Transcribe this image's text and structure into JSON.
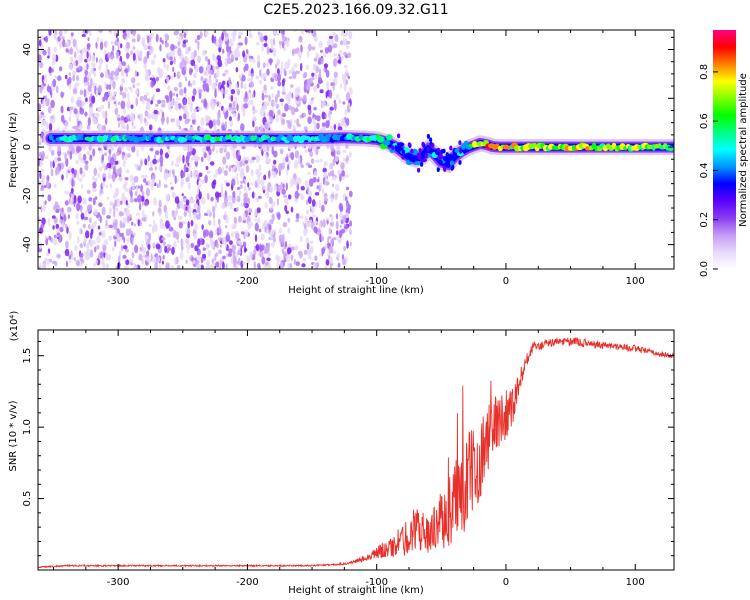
{
  "title": "C2E5.2023.166.09.32.G11",
  "chart_data": [
    {
      "type": "heatmap",
      "xlabel": "Height of straight line (km)",
      "ylabel": "Frequency (Hz)",
      "xlim": [
        -362,
        130
      ],
      "ylim": [
        -50,
        48
      ],
      "xticks": [
        -300,
        -200,
        -100,
        0,
        100
      ],
      "xtick_labels": [
        "-300",
        "-200",
        "-100",
        "0",
        "100"
      ],
      "yticks": [
        -40,
        -20,
        0,
        20,
        40
      ],
      "ytick_labels": [
        "-40",
        "-20",
        "0",
        "20",
        "40"
      ],
      "colorbar": {
        "label": "Normalized spectral amplitude",
        "range": [
          0,
          0.97
        ],
        "ticks": [
          0.0,
          0.2,
          0.4,
          0.6,
          0.8
        ],
        "tick_labels": [
          "0.0",
          "0.2",
          "0.4",
          "0.6",
          "0.8"
        ],
        "colormap": [
          "#ffffff",
          "#e8d8fa",
          "#c49bf5",
          "#8a3cf0",
          "#5a00ff",
          "#0000ff",
          "#0096ff",
          "#00ffff",
          "#00ff80",
          "#00ff00",
          "#80ff00",
          "#ffff00",
          "#ff8000",
          "#ff0000",
          "#ff0080"
        ]
      },
      "signal_trace": {
        "height_km": [
          -352,
          -330,
          -300,
          -270,
          -240,
          -210,
          -180,
          -150,
          -125,
          -110,
          -100,
          -92,
          -85,
          -80,
          -75,
          -70,
          -65,
          -60,
          -55,
          -50,
          -45,
          -40,
          -35,
          -30,
          -25,
          -20,
          -15,
          -10,
          -5,
          0,
          20,
          50,
          80,
          110,
          130
        ],
        "frequency_hz": [
          3.5,
          3.5,
          3.5,
          3.4,
          3.5,
          3.5,
          3.4,
          3.5,
          3.8,
          3.6,
          3.2,
          2.0,
          0.0,
          -2.0,
          -4.0,
          -5.0,
          -4.0,
          -1.0,
          -3.0,
          -6.0,
          -7.0,
          -4.0,
          -2.0,
          -0.5,
          0.5,
          1.5,
          1.0,
          0.2,
          0.0,
          0.0,
          0.0,
          0.0,
          0.0,
          0.0,
          0.0
        ],
        "amplitude": [
          0.5,
          0.55,
          0.6,
          0.55,
          0.6,
          0.6,
          0.55,
          0.55,
          0.5,
          0.65,
          0.7,
          0.6,
          0.55,
          0.45,
          0.5,
          0.45,
          0.4,
          0.45,
          0.5,
          0.4,
          0.45,
          0.45,
          0.5,
          0.6,
          0.75,
          0.85,
          0.9,
          0.95,
          0.9,
          0.85,
          0.8,
          0.8,
          0.8,
          0.75,
          0.7
        ]
      },
      "noise_region_km": [
        -362,
        -120
      ]
    },
    {
      "type": "line",
      "xlabel": "Height of straight line (km)",
      "ylabel": "SNR (10 * v/v)",
      "scale_label": "(x10⁴)",
      "xlim": [
        -362,
        130
      ],
      "ylim": [
        0.0,
        1.68
      ],
      "xticks": [
        -300,
        -200,
        -100,
        0,
        100
      ],
      "xtick_labels": [
        "-300",
        "-200",
        "-100",
        "0",
        "100"
      ],
      "yticks": [
        0.5,
        1.0,
        1.5
      ],
      "ytick_labels": [
        "0.5",
        "1.0",
        "1.5"
      ],
      "series": [
        {
          "color": "#e8302a",
          "x": [
            -362,
            -340,
            -300,
            -260,
            -220,
            -180,
            -150,
            -130,
            -120,
            -110,
            -100,
            -95,
            -90,
            -85,
            -80,
            -75,
            -70,
            -65,
            -60,
            -55,
            -50,
            -45,
            -40,
            -35,
            -30,
            -25,
            -20,
            -15,
            -10,
            -5,
            0,
            5,
            10,
            15,
            20,
            30,
            40,
            50,
            60,
            70,
            80,
            90,
            100,
            110,
            120,
            130
          ],
          "y": [
            0.02,
            0.03,
            0.03,
            0.03,
            0.03,
            0.03,
            0.03,
            0.04,
            0.05,
            0.08,
            0.12,
            0.14,
            0.15,
            0.18,
            0.2,
            0.25,
            0.3,
            0.27,
            0.25,
            0.3,
            0.35,
            0.4,
            0.45,
            0.55,
            0.62,
            0.7,
            0.78,
            0.9,
            1.0,
            1.05,
            1.1,
            1.15,
            1.3,
            1.45,
            1.55,
            1.58,
            1.6,
            1.6,
            1.59,
            1.58,
            1.57,
            1.56,
            1.55,
            1.53,
            1.51,
            1.5
          ],
          "noise_amplitude": [
            0.005,
            0.005,
            0.005,
            0.005,
            0.005,
            0.005,
            0.005,
            0.006,
            0.01,
            0.02,
            0.04,
            0.06,
            0.07,
            0.09,
            0.12,
            0.14,
            0.15,
            0.14,
            0.13,
            0.16,
            0.2,
            0.25,
            0.32,
            0.35,
            0.34,
            0.3,
            0.28,
            0.26,
            0.22,
            0.2,
            0.18,
            0.15,
            0.08,
            0.05,
            0.04,
            0.03,
            0.03,
            0.03,
            0.03,
            0.03,
            0.025,
            0.025,
            0.025,
            0.02,
            0.02,
            0.02
          ]
        }
      ]
    }
  ]
}
